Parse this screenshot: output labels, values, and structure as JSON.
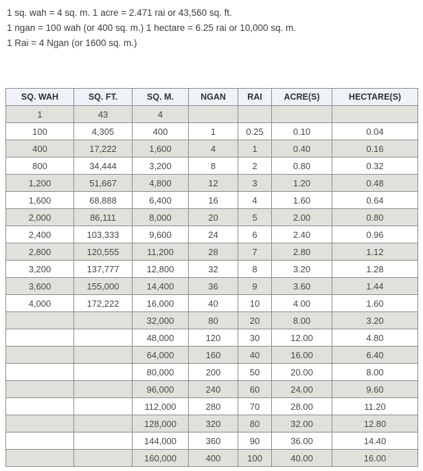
{
  "intro": {
    "line1": "1 sq. wah = 4 sq. m. 1 acre = 2.471 rai or 43,560 sq. ft.",
    "line2": "1 ngan = 100 wah (or 400 sq. m.) 1 hectare = 6.25 rai or 10,000 sq. m.",
    "line3": "1 Rai = 4 Ngan (or 1600 sq. m.)"
  },
  "table": {
    "headers": [
      "SQ. WAH",
      "SQ. FT.",
      "SQ. M.",
      "NGAN",
      "RAI",
      "ACRE(S)",
      "HECTARE(S)"
    ],
    "rows": [
      [
        "1",
        "43",
        "4",
        "",
        "",
        "",
        ""
      ],
      [
        "100",
        "4,305",
        "400",
        "1",
        "0.25",
        "0.10",
        "0.04"
      ],
      [
        "400",
        "17,222",
        "1,600",
        "4",
        "1",
        "0.40",
        "0.16"
      ],
      [
        "800",
        "34,444",
        "3,200",
        "8",
        "2",
        "0.80",
        "0.32"
      ],
      [
        "1,200",
        "51,667",
        "4,800",
        "12",
        "3",
        "1.20",
        "0.48"
      ],
      [
        "1,600",
        "68,888",
        "6,400",
        "16",
        "4",
        "1.60",
        "0.64"
      ],
      [
        "2,000",
        "86,111",
        "8,000",
        "20",
        "5",
        "2.00",
        "0.80"
      ],
      [
        "2,400",
        "103,333",
        "9,600",
        "24",
        "6",
        "2.40",
        "0.96"
      ],
      [
        "2,800",
        "120,555",
        "11,200",
        "28",
        "7",
        "2.80",
        "1.12"
      ],
      [
        "3,200",
        "137,777",
        "12,800",
        "32",
        "8",
        "3.20",
        "1.28"
      ],
      [
        "3,600",
        "155,000",
        "14,400",
        "36",
        "9",
        "3.60",
        "1.44"
      ],
      [
        "4,000",
        "172,222",
        "16,000",
        "40",
        "10",
        "4.00",
        "1.60"
      ],
      [
        "",
        "",
        "32,000",
        "80",
        "20",
        "8.00",
        "3.20"
      ],
      [
        "",
        "",
        "48,000",
        "120",
        "30",
        "12.00",
        "4.80"
      ],
      [
        "",
        "",
        "64,000",
        "160",
        "40",
        "16.00",
        "6.40"
      ],
      [
        "",
        "",
        "80,000",
        "200",
        "50",
        "20.00",
        "8.00"
      ],
      [
        "",
        "",
        "96,000",
        "240",
        "60",
        "24.00",
        "9.60"
      ],
      [
        "",
        "",
        "112,000",
        "280",
        "70",
        "28.00",
        "11.20"
      ],
      [
        "",
        "",
        "128,000",
        "320",
        "80",
        "32.00",
        "12.80"
      ],
      [
        "",
        "",
        "144,000",
        "360",
        "90",
        "36.00",
        "14.40"
      ],
      [
        "",
        "",
        "160,000",
        "400",
        "100",
        "40.00",
        "16.00"
      ]
    ]
  },
  "colors": {
    "header_bg": "#eff3f9",
    "stripe_bg": "#e1e1db",
    "border": "#8a8a8a",
    "intro_text": "#3b3b3b",
    "cell_text": "#474747"
  }
}
